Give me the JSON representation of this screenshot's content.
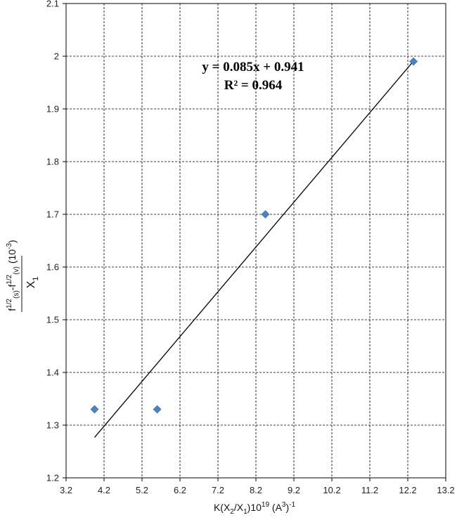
{
  "chart_data": {
    "type": "scatter",
    "xlim": [
      3.2,
      13.2
    ],
    "ylim": [
      1.2,
      2.1
    ],
    "x_ticks": [
      "3.2",
      "4.2",
      "5.2",
      "6.2",
      "7.2",
      "8.2",
      "9.2",
      "10.2",
      "11.2",
      "12.2",
      "13.2"
    ],
    "y_ticks": [
      "1.2",
      "1.3",
      "1.4",
      "1.5",
      "1.6",
      "1.7",
      "1.8",
      "1.9",
      "2",
      "2.1"
    ],
    "grid": true,
    "series": [
      {
        "points": [
          {
            "x": 3.95,
            "y": 1.33
          },
          {
            "x": 5.6,
            "y": 1.33
          },
          {
            "x": 8.45,
            "y": 1.7
          },
          {
            "x": 12.35,
            "y": 1.99
          }
        ],
        "marker": "diamond",
        "color": "#4f81bd"
      }
    ],
    "trendline": {
      "slope": 0.085,
      "intercept": 0.941,
      "x_range": [
        3.95,
        12.35
      ],
      "color": "#000000"
    },
    "annotations": {
      "equation": "y = 0.085x + 0.941",
      "r_squared": "R² = 0.964"
    },
    "xlabel": {
      "text": "K(X",
      "sub1": "2",
      "mid1": "/X",
      "sub2": "1",
      "mid2": ")10",
      "sup1": "19",
      "mid3": " (A",
      "sup2": "3",
      "mid4": ")",
      "sup3": "-1"
    },
    "ylabel": {
      "numerator": {
        "f1": "f",
        "sup1": "1/2",
        "sub1": "(s)",
        "minus": "-f",
        "sup2": "1/2",
        "sub2": "(v)",
        "factor": "(10",
        "sup3": "-3",
        "close": ")"
      },
      "denominator": {
        "x": "X",
        "sub": "1"
      }
    }
  }
}
